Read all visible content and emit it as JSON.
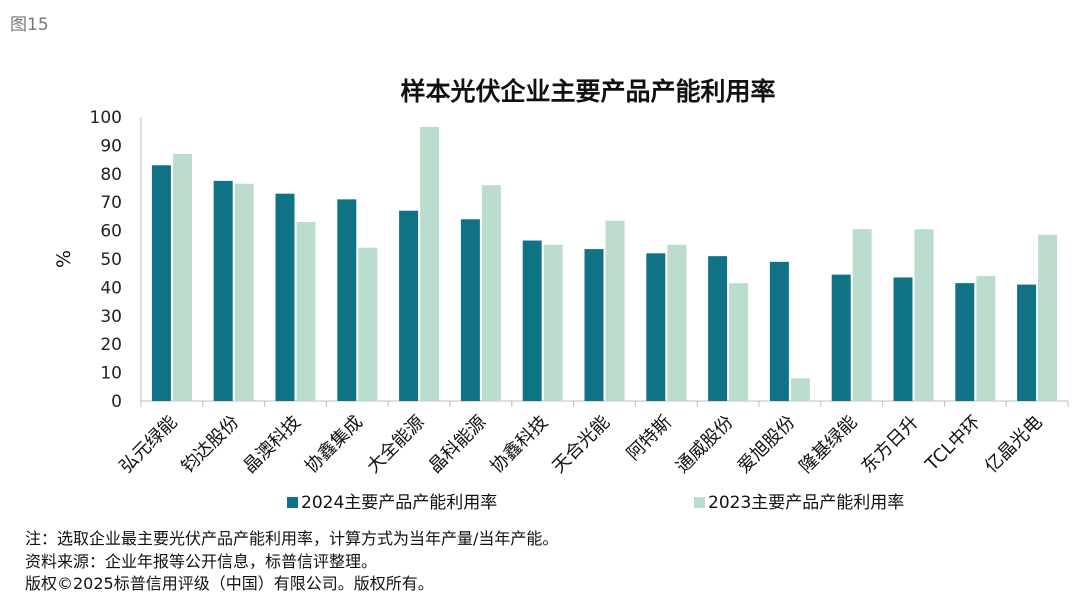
{
  "figure_label": "图15",
  "chart_data": {
    "type": "bar",
    "title": "样本光伏企业主要产品产能利用率",
    "xlabel": "",
    "ylabel": "%",
    "ylim": [
      0,
      100
    ],
    "yticks": [
      0,
      10,
      20,
      30,
      40,
      50,
      60,
      70,
      80,
      90,
      100
    ],
    "categories": [
      "弘元绿能",
      "钧达股份",
      "晶澳科技",
      "协鑫集成",
      "大全能源",
      "晶科能源",
      "协鑫科技",
      "天合光能",
      "阿特斯",
      "通威股份",
      "爱旭股份",
      "隆基绿能",
      "东方日升",
      "TCL中环",
      "亿晶光电"
    ],
    "series": [
      {
        "name": "2024主要产品产能利用率",
        "color": "#0f7385",
        "values": [
          83,
          77.5,
          73,
          71,
          67,
          64,
          56.5,
          53.5,
          52,
          51,
          49,
          44.5,
          43.5,
          41.5,
          41
        ]
      },
      {
        "name": "2023主要产品产能利用率",
        "color": "#bcddce",
        "values": [
          87,
          76.5,
          63,
          54,
          96.5,
          76,
          55,
          63.5,
          55,
          41.5,
          8,
          60.5,
          60.5,
          44,
          58.5
        ]
      }
    ],
    "legend_position": "bottom",
    "grid": false
  },
  "notes": [
    "注：选取企业最主要光伏产品产能利用率，计算方式为当年产量/当年产能。",
    "资料来源：企业年报等公开信息，标普信评整理。",
    "版权©2025标普信用评级（中国）有限公司。版权所有。"
  ]
}
